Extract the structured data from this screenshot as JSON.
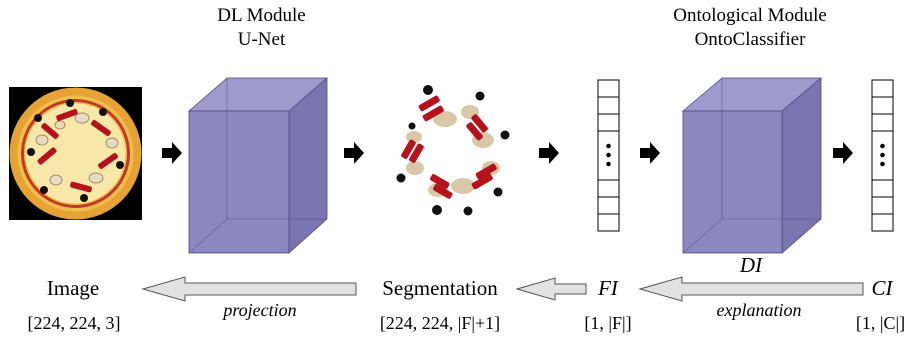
{
  "modules": {
    "dl": {
      "line1": "DL Module",
      "line2": "U-Net"
    },
    "onto": {
      "line1": "Ontological Module",
      "line2": "OntoClassifier"
    }
  },
  "labels": {
    "image": "Image",
    "image_dim": "[224, 224, 3]",
    "segmentation": "Segmentation",
    "segmentation_dim": "[224, 224, |F|+1]",
    "fi": "FI",
    "fi_dim": "[1, |F|]",
    "ci": "CI",
    "ci_dim": "[1, |C|]",
    "di": "DI"
  },
  "arrows": {
    "projection": "projection",
    "explanation": "explanation"
  },
  "colors": {
    "cube_face": "#8b88bf",
    "cube_side": "#7875b0",
    "cube_edge": "#4e4a86",
    "arrow_fill": "#e2e2e2",
    "pizza_crust": "#e6a235",
    "pizza_cheese": "#f7e7a8",
    "tomato_ring": "#c0392b",
    "bacon": "#b5121b",
    "mushroom": "#d8c8a8",
    "olive": "#111111"
  }
}
